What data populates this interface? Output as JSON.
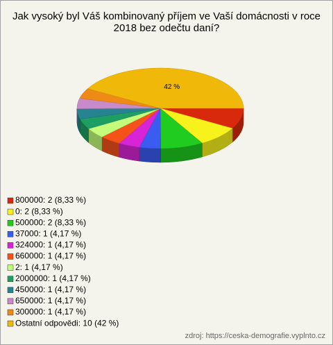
{
  "chart_data": {
    "type": "pie",
    "title": "Jak vysoký byl Váš kombinovaný příjem ve Vaší domácnosti v roce 2018 bez odečtu daní?",
    "categories": [
      "800000: 2 (8,33 %)",
      "0: 2 (8,33 %)",
      "500000: 2 (8,33 %)",
      "37000: 1 (4,17 %)",
      "324000: 1 (4,17 %)",
      "660000: 1 (4,17 %)",
      "2: 1 (4,17 %)",
      "2000000: 1 (4,17 %)",
      "450000: 1 (4,17 %)",
      "650000: 1 (4,17 %)",
      "300000: 1 (4,17 %)",
      "Ostatní odpovědi: 10 (42 %)"
    ],
    "values": [
      8.33,
      8.33,
      8.33,
      4.17,
      4.17,
      4.17,
      4.17,
      4.17,
      4.17,
      4.17,
      4.17,
      42
    ],
    "value_labels": [
      null,
      null,
      null,
      null,
      null,
      null,
      null,
      null,
      null,
      null,
      null,
      "42 %"
    ],
    "colors": [
      "#d8290c",
      "#f7f21c",
      "#1fcc1f",
      "#3a5cf0",
      "#d624d6",
      "#f5521a",
      "#c3fb7a",
      "#1e9e63",
      "#25848f",
      "#c98ac9",
      "#ef8a16",
      "#f0b90a"
    ],
    "source": "zdroj: https://ceska-demografie.vyplnto.cz"
  }
}
